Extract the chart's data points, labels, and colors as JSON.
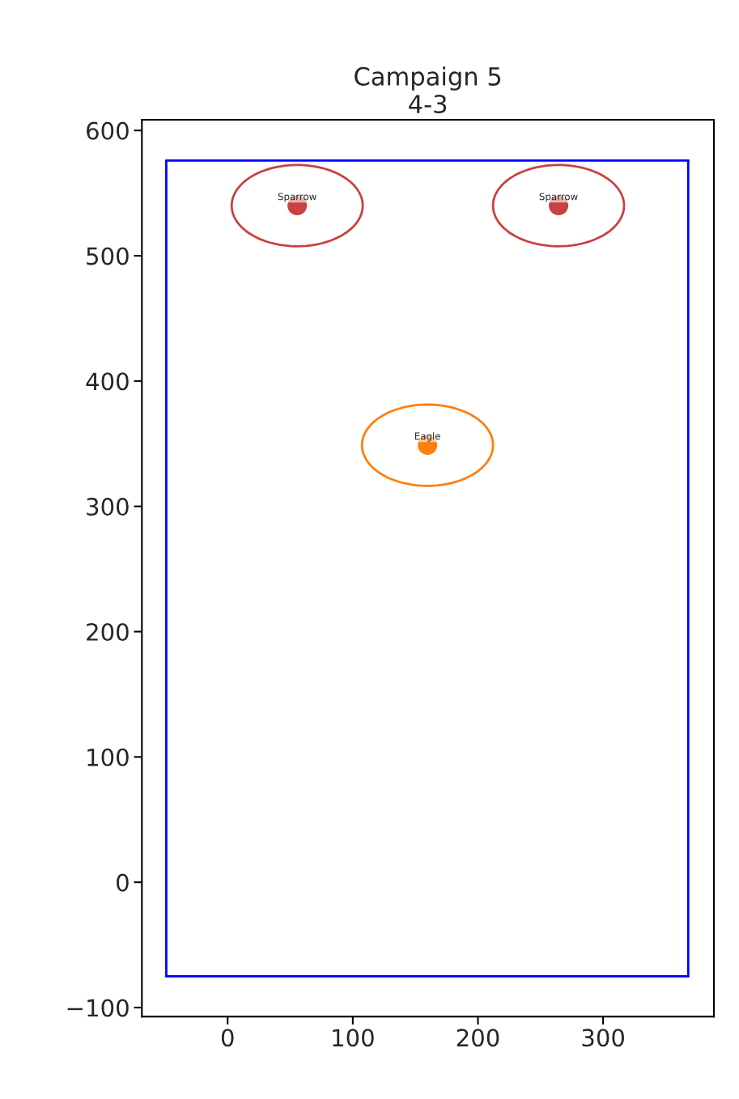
{
  "chart_data": {
    "type": "scatter",
    "title": "Campaign 5\n4-3",
    "series": [
      {
        "name": "Sparrow",
        "color": "#c94140",
        "x": [
          55.6,
          264.4
        ],
        "values": [
          540,
          540
        ]
      },
      {
        "name": "Eagle",
        "color": "#ff7f0e",
        "x": [
          159.7
        ],
        "values": [
          348.8
        ]
      },
      {
        "type": "line",
        "marker": "none",
        "color": "#0000ff",
        "x": [
          -49,
          368
        ],
        "values": [
          -75,
          -75
        ]
      },
      {
        "type": "line",
        "marker": "none",
        "color": "#0000ff",
        "x": [
          368,
          368
        ],
        "values": [
          -75,
          576
        ]
      },
      {
        "type": "line",
        "marker": "none",
        "color": "#0000ff",
        "x": [
          368,
          -49
        ],
        "values": [
          576,
          576
        ]
      },
      {
        "type": "line",
        "marker": "none",
        "color": "#0000ff",
        "x": [
          -49,
          -49
        ],
        "values": [
          576,
          -75
        ]
      }
    ],
    "xlim": [
      -68.5,
      388.5
    ],
    "ylim": [
      -107.2,
      608.5
    ],
    "xticks": [
      0,
      100,
      200,
      300
    ],
    "yticks": [
      {
        "value": -100,
        "label": "−100"
      },
      0,
      100,
      200,
      300,
      400,
      500,
      600
    ],
    "grid": false,
    "legend": false,
    "marker": "circle"
  }
}
